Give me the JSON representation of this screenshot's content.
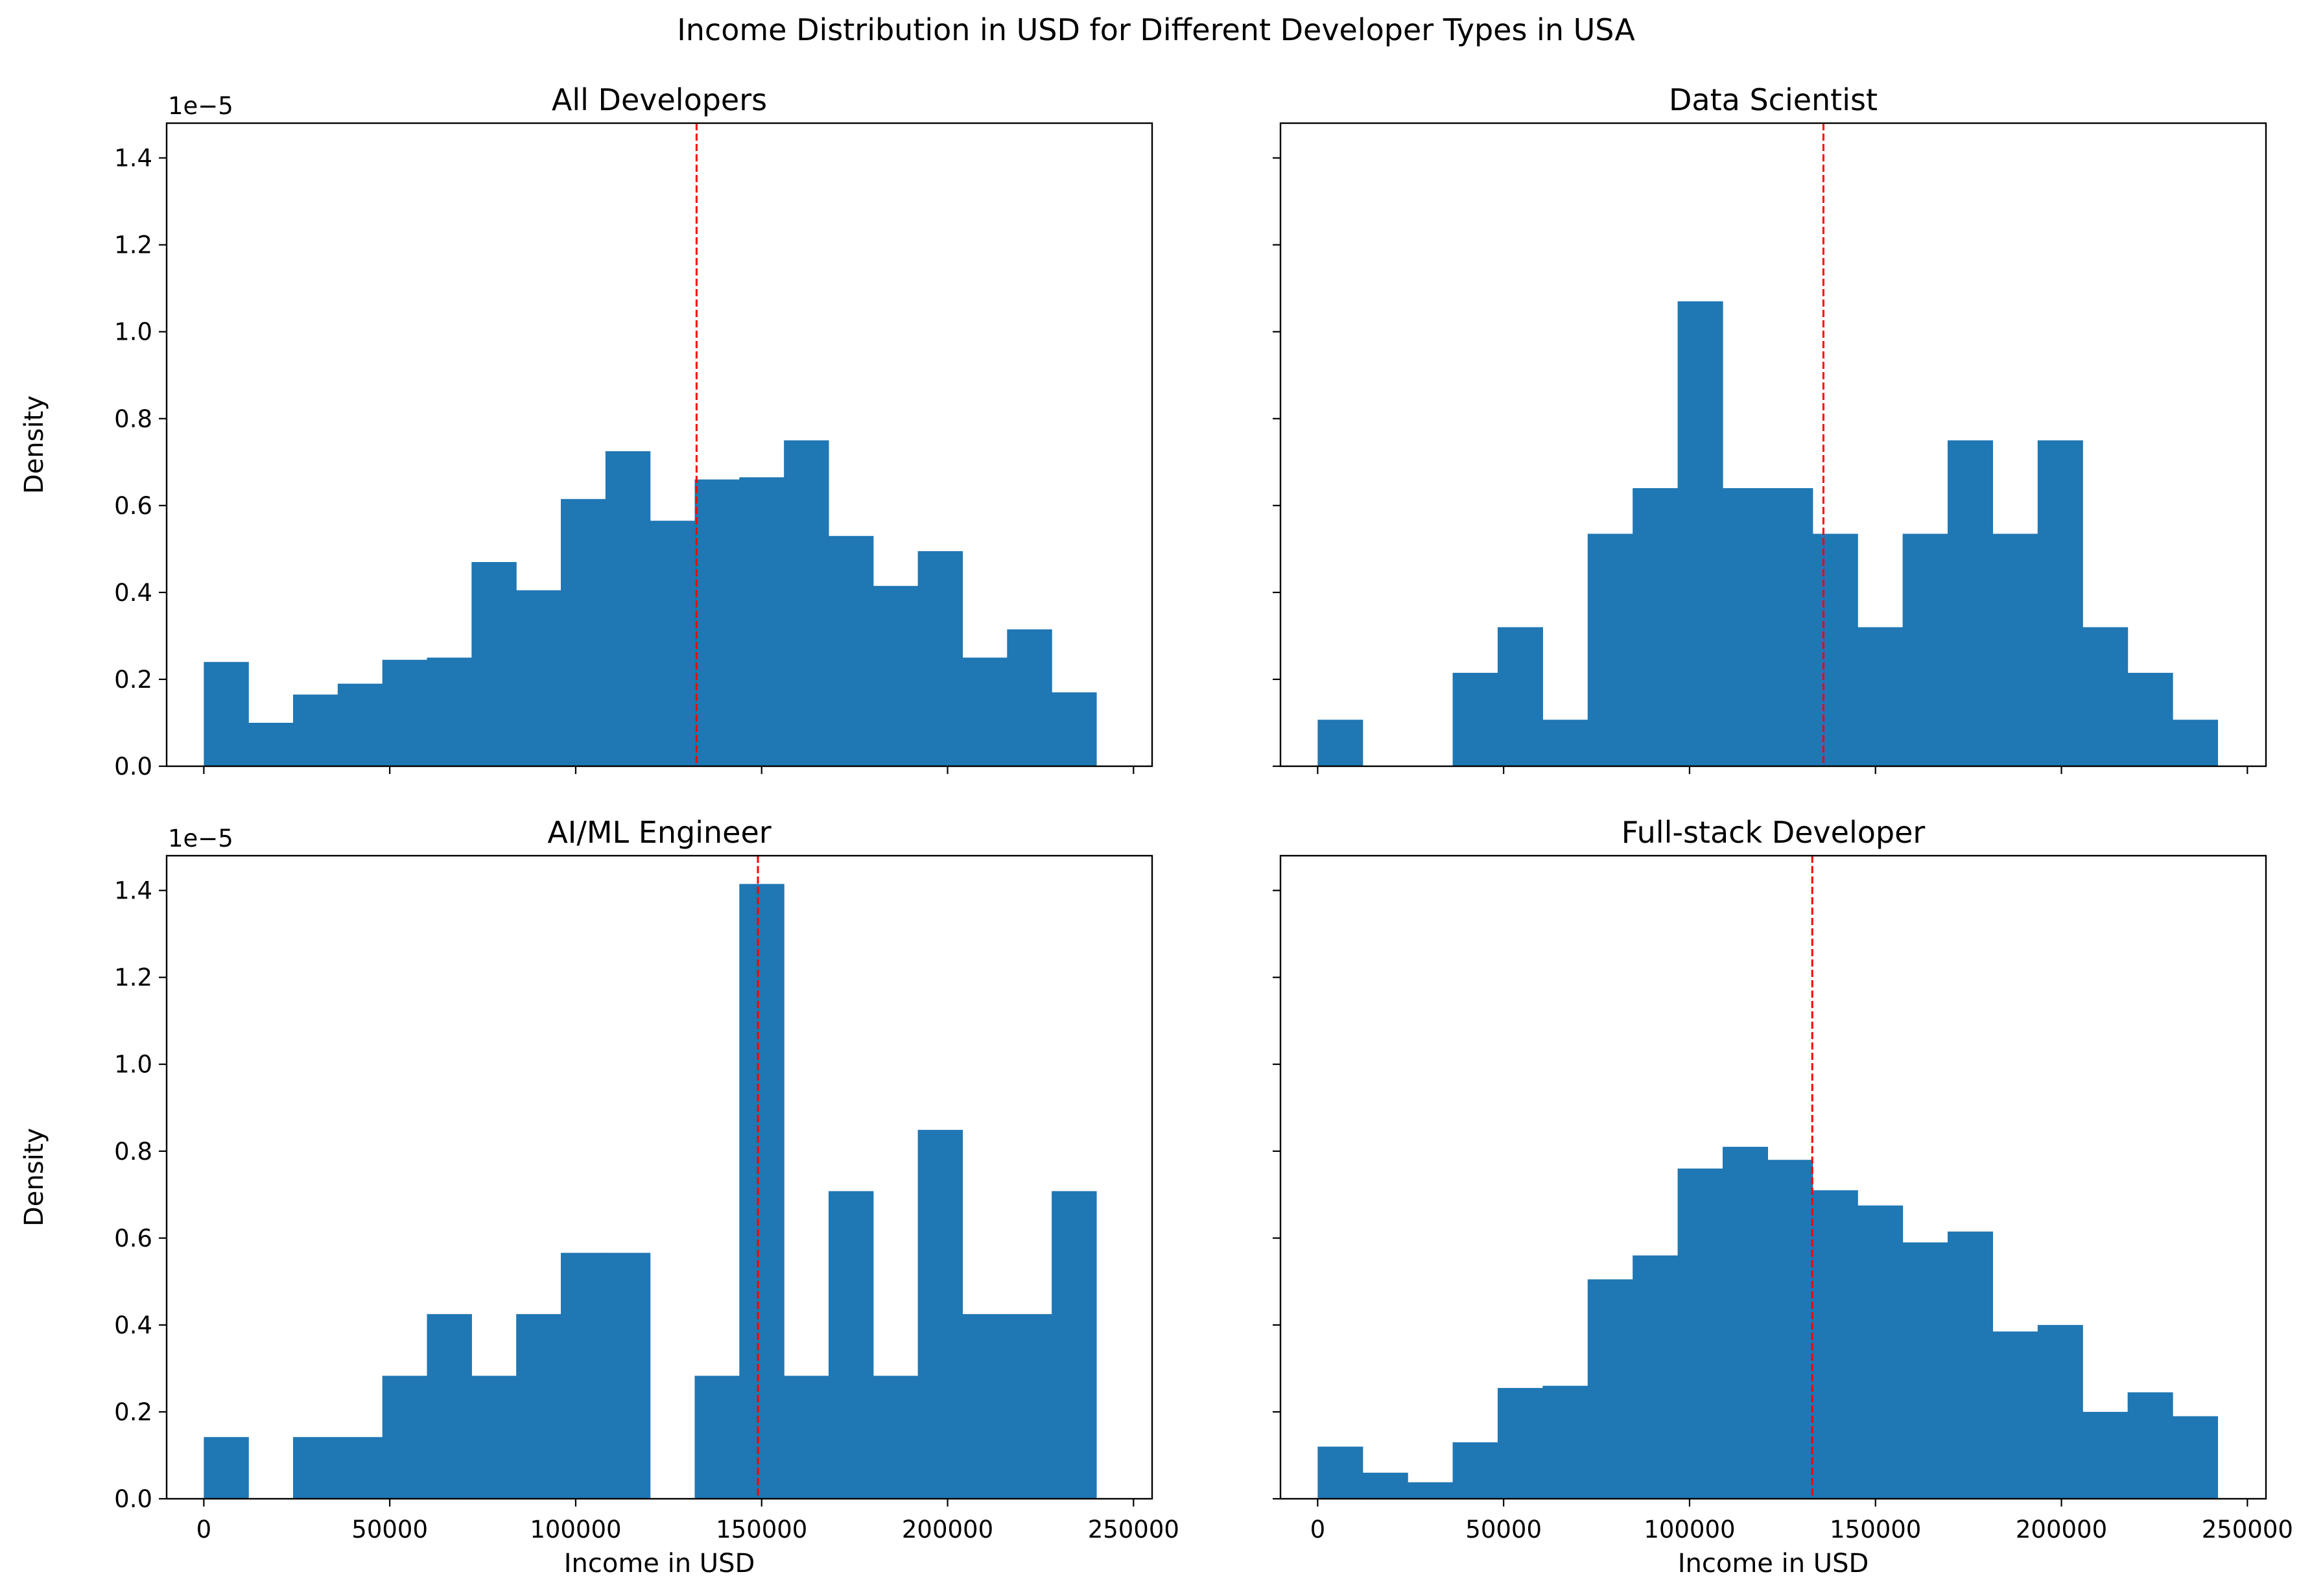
{
  "figure": {
    "title": "Income Distribution in USD for Different Developer Types in USA"
  },
  "chart_data": [
    {
      "type": "bar",
      "title": "All Developers",
      "xlabel": "",
      "ylabel": "Density",
      "y_offset_text": "1e−5",
      "xlim": [
        -10000,
        255000
      ],
      "ylim": [
        0,
        1.48
      ],
      "xticks": [
        0,
        50000,
        100000,
        150000,
        200000,
        250000
      ],
      "show_xticklabels": false,
      "yticks": [
        0.0,
        0.2,
        0.4,
        0.6,
        0.8,
        1.0,
        1.2,
        1.4
      ],
      "show_yticklabels": true,
      "bin_start": 0,
      "bin_width": 12000,
      "values": [
        0.24,
        0.1,
        0.165,
        0.19,
        0.245,
        0.25,
        0.47,
        0.405,
        0.615,
        0.725,
        0.565,
        0.66,
        0.665,
        0.75,
        0.53,
        0.415,
        0.495,
        0.25,
        0.315,
        0.17
      ],
      "median": 132500,
      "bar_color": "#1f77b4",
      "median_color": "#ff0000"
    },
    {
      "type": "bar",
      "title": "Data Scientist",
      "xlabel": "",
      "ylabel": "",
      "y_offset_text": "",
      "xlim": [
        -10000,
        255000
      ],
      "ylim": [
        0,
        1.48
      ],
      "xticks": [
        0,
        50000,
        100000,
        150000,
        200000,
        250000
      ],
      "show_xticklabels": false,
      "yticks": [
        0.0,
        0.2,
        0.4,
        0.6,
        0.8,
        1.0,
        1.2,
        1.4
      ],
      "show_yticklabels": false,
      "bin_start": 0,
      "bin_width": 12100,
      "values": [
        0.107,
        0.0,
        0.0,
        0.215,
        0.32,
        0.107,
        0.535,
        0.64,
        1.07,
        0.64,
        0.64,
        0.535,
        0.32,
        0.535,
        0.75,
        0.535,
        0.75,
        0.32,
        0.215,
        0.107
      ],
      "median": 136000,
      "bar_color": "#1f77b4",
      "median_color": "#ff0000"
    },
    {
      "type": "bar",
      "title": "AI/ML Engineer",
      "xlabel": "Income in USD",
      "ylabel": "Density",
      "y_offset_text": "1e−5",
      "xlim": [
        -10000,
        255000
      ],
      "ylim": [
        0,
        1.48
      ],
      "xticks": [
        0,
        50000,
        100000,
        150000,
        200000,
        250000
      ],
      "show_xticklabels": true,
      "yticks": [
        0.0,
        0.2,
        0.4,
        0.6,
        0.8,
        1.0,
        1.2,
        1.4
      ],
      "show_yticklabels": true,
      "bin_start": 0,
      "bin_width": 12000,
      "values": [
        0.142,
        0.0,
        0.142,
        0.142,
        0.283,
        0.425,
        0.283,
        0.425,
        0.566,
        0.566,
        0.0,
        0.283,
        1.415,
        0.283,
        0.708,
        0.283,
        0.849,
        0.425,
        0.425,
        0.708
      ],
      "median": 149000,
      "bar_color": "#1f77b4",
      "median_color": "#ff0000"
    },
    {
      "type": "bar",
      "title": "Full-stack Developer",
      "xlabel": "Income in USD",
      "ylabel": "",
      "y_offset_text": "",
      "xlim": [
        -10000,
        255000
      ],
      "ylim": [
        0,
        1.48
      ],
      "xticks": [
        0,
        50000,
        100000,
        150000,
        200000,
        250000
      ],
      "show_xticklabels": true,
      "yticks": [
        0.0,
        0.2,
        0.4,
        0.6,
        0.8,
        1.0,
        1.2,
        1.4
      ],
      "show_yticklabels": false,
      "bin_start": 0,
      "bin_width": 12100,
      "values": [
        0.12,
        0.06,
        0.038,
        0.13,
        0.255,
        0.26,
        0.505,
        0.56,
        0.76,
        0.81,
        0.78,
        0.71,
        0.675,
        0.59,
        0.615,
        0.385,
        0.4,
        0.2,
        0.245,
        0.19
      ],
      "median": 133000,
      "bar_color": "#1f77b4",
      "median_color": "#ff0000"
    }
  ]
}
